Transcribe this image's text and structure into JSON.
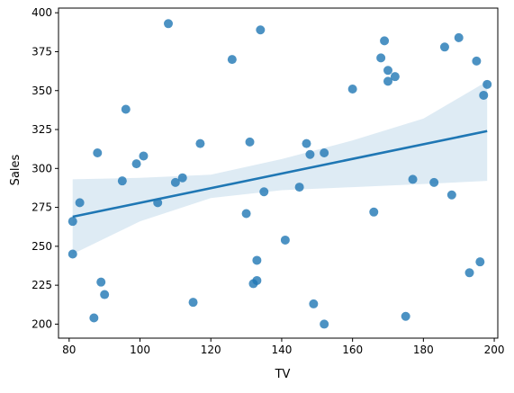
{
  "chart_data": {
    "type": "scatter",
    "title": "",
    "xlabel": "TV",
    "ylabel": "Sales",
    "xlim": [
      77,
      201
    ],
    "ylim": [
      191,
      403
    ],
    "xticks": [
      80,
      100,
      120,
      140,
      160,
      180,
      200
    ],
    "yticks": [
      200,
      225,
      250,
      275,
      300,
      325,
      350,
      375,
      400
    ],
    "grid": false,
    "colors": {
      "points": "#1f77b4",
      "regression_line": "#1f77b4",
      "confidence_band": "#1f77b4"
    },
    "points": [
      {
        "x": 81,
        "y": 266
      },
      {
        "x": 81,
        "y": 245
      },
      {
        "x": 83,
        "y": 278
      },
      {
        "x": 87,
        "y": 204
      },
      {
        "x": 88,
        "y": 310
      },
      {
        "x": 89,
        "y": 227
      },
      {
        "x": 90,
        "y": 219
      },
      {
        "x": 95,
        "y": 292
      },
      {
        "x": 96,
        "y": 338
      },
      {
        "x": 99,
        "y": 303
      },
      {
        "x": 101,
        "y": 308
      },
      {
        "x": 105,
        "y": 278
      },
      {
        "x": 108,
        "y": 393
      },
      {
        "x": 110,
        "y": 291
      },
      {
        "x": 112,
        "y": 294
      },
      {
        "x": 115,
        "y": 214
      },
      {
        "x": 117,
        "y": 316
      },
      {
        "x": 126,
        "y": 370
      },
      {
        "x": 130,
        "y": 271
      },
      {
        "x": 131,
        "y": 317
      },
      {
        "x": 132,
        "y": 226
      },
      {
        "x": 133,
        "y": 228
      },
      {
        "x": 133,
        "y": 241
      },
      {
        "x": 134,
        "y": 389
      },
      {
        "x": 135,
        "y": 285
      },
      {
        "x": 141,
        "y": 254
      },
      {
        "x": 145,
        "y": 288
      },
      {
        "x": 147,
        "y": 316
      },
      {
        "x": 148,
        "y": 309
      },
      {
        "x": 149,
        "y": 213
      },
      {
        "x": 152,
        "y": 310
      },
      {
        "x": 152,
        "y": 200
      },
      {
        "x": 160,
        "y": 351
      },
      {
        "x": 166,
        "y": 272
      },
      {
        "x": 168,
        "y": 371
      },
      {
        "x": 169,
        "y": 382
      },
      {
        "x": 170,
        "y": 363
      },
      {
        "x": 170,
        "y": 356
      },
      {
        "x": 172,
        "y": 359
      },
      {
        "x": 175,
        "y": 205
      },
      {
        "x": 177,
        "y": 293
      },
      {
        "x": 183,
        "y": 291
      },
      {
        "x": 186,
        "y": 378
      },
      {
        "x": 188,
        "y": 283
      },
      {
        "x": 190,
        "y": 384
      },
      {
        "x": 193,
        "y": 233
      },
      {
        "x": 195,
        "y": 369
      },
      {
        "x": 196,
        "y": 240
      },
      {
        "x": 197,
        "y": 347
      },
      {
        "x": 198,
        "y": 354
      }
    ],
    "regression_line": [
      {
        "x": 81,
        "y": 269
      },
      {
        "x": 198,
        "y": 324
      }
    ],
    "confidence_band": {
      "x": [
        81,
        100,
        120,
        140,
        160,
        180,
        198
      ],
      "lower": [
        245,
        266,
        281,
        286,
        288,
        290,
        292
      ],
      "upper": [
        293,
        294,
        296,
        306,
        318,
        332,
        356
      ]
    }
  }
}
